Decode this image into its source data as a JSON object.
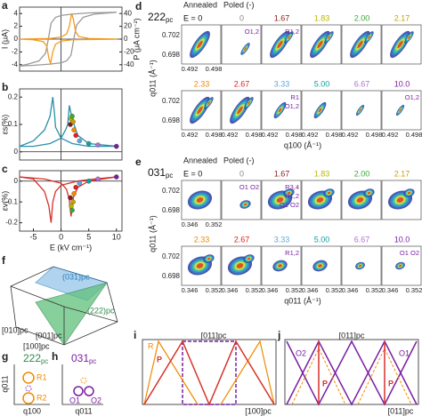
{
  "plots": [
    {
      "label": "a",
      "ylabel": "I (μA)",
      "y2label": "P (μA cm⁻²)",
      "xlim": [
        -7.5,
        11
      ],
      "ylim": [
        -5,
        5
      ],
      "yticks": [
        -4,
        -2,
        0,
        2,
        4
      ],
      "y2lim": [
        -50,
        50
      ],
      "y2ticks": [
        -40,
        -20,
        0,
        20,
        40
      ],
      "series": [
        {
          "color": "#9a9a9a",
          "axis": "y2",
          "x": [
            -7.5,
            -5,
            -2,
            0,
            1,
            1.8,
            2.3,
            2.8,
            4,
            6,
            10
          ],
          "values": [
            -42,
            -41,
            -39,
            -37,
            -34,
            -25,
            0,
            22,
            34,
            39,
            42
          ]
        },
        {
          "color": "#9a9a9a",
          "axis": "y2",
          "x": [
            10,
            5,
            2,
            0,
            -1,
            -1.8,
            -2.3,
            -2.8,
            -4,
            -6,
            -7.5
          ],
          "values": [
            42,
            41,
            39,
            37,
            34,
            25,
            0,
            -22,
            -34,
            -39,
            -42
          ]
        },
        {
          "color": "#f39a1e",
          "x": [
            -7.5,
            -2,
            0,
            1,
            1.5,
            1.9,
            2.2,
            2.6,
            3.2,
            5,
            10
          ],
          "values": [
            0,
            0.1,
            0.3,
            0.8,
            2,
            4,
            3.2,
            1.2,
            0.4,
            0.1,
            0
          ]
        },
        {
          "color": "#f39a1e",
          "x": [
            10,
            2,
            0,
            -1,
            -1.5,
            -1.9,
            -2.2,
            -2.6,
            -3.2,
            -5,
            -7.5
          ],
          "values": [
            0,
            -0.1,
            -0.3,
            -0.8,
            -2,
            -3.8,
            -3,
            -1.1,
            -0.4,
            -0.1,
            0
          ]
        }
      ]
    },
    {
      "label": "b",
      "ylabel": "εs(%)",
      "xlim": [
        -7.5,
        11
      ],
      "ylim": [
        -0.03,
        0.23
      ],
      "yticks": [
        0,
        0.1,
        0.2
      ],
      "series": [
        {
          "color": "#2a8fa8",
          "x": [
            -7.5,
            -5,
            -3,
            -2,
            -1.5,
            -1.2,
            -1,
            0,
            2,
            5,
            10
          ],
          "values": [
            0.02,
            0.04,
            0.08,
            0.13,
            0.2,
            0.14,
            0.09,
            0.05,
            0.03,
            0.02,
            0.02
          ]
        },
        {
          "color": "#2a8fa8",
          "x": [
            -7.5,
            -5,
            -2,
            0,
            0.8,
            1.2,
            1.5,
            2,
            3,
            5,
            10
          ],
          "values": [
            0.02,
            0.02,
            0.03,
            0.05,
            0.08,
            0.1,
            0.17,
            0.12,
            0.06,
            0.03,
            0.02
          ]
        },
        {
          "type": "scatter",
          "x": [
            1.67,
            1.83,
            2.0,
            2.17,
            2.33,
            2.67,
            3.33,
            5,
            6.67,
            10
          ],
          "values": [
            0.1,
            0.12,
            0.13,
            0.11,
            0.08,
            0.06,
            0.04,
            0.03,
            0.025,
            0.02
          ],
          "colors": [
            "#8b1a1a",
            "#b5b800",
            "#3aa835",
            "#c8a000",
            "#f08a00",
            "#e02020",
            "#5aa8e0",
            "#10a0a0",
            "#b070d0",
            "#7a1fa2"
          ]
        }
      ]
    },
    {
      "label": "c",
      "ylabel": "εv(%)",
      "xlabel": "E (kV cm⁻¹)",
      "xlim": [
        -7.5,
        11
      ],
      "xticks": [
        -5,
        0,
        5,
        10
      ],
      "ylim": [
        -0.24,
        0.05
      ],
      "yticks": [
        0,
        -0.1,
        -0.2
      ],
      "series": [
        {
          "color": "#d8312b",
          "x": [
            -7.5,
            -5,
            -3,
            -2.2,
            -1.8,
            -1.5,
            -1,
            0,
            3,
            6,
            10
          ],
          "values": [
            0.02,
            0.01,
            -0.05,
            -0.12,
            -0.2,
            -0.1,
            -0.05,
            -0.02,
            0,
            0.01,
            0.02
          ]
        },
        {
          "color": "#d8312b",
          "x": [
            -7.5,
            -3,
            0,
            1,
            1.5,
            1.8,
            2.2,
            3,
            5,
            10
          ],
          "values": [
            0.02,
            0.01,
            -0.01,
            -0.04,
            -0.09,
            -0.17,
            -0.08,
            -0.03,
            0,
            0.02
          ]
        },
        {
          "type": "scatter",
          "x": [
            1.67,
            1.83,
            2.0,
            2.17,
            2.33,
            2.67,
            3.33,
            5,
            6.67,
            10
          ],
          "values": [
            -0.08,
            -0.12,
            -0.14,
            -0.1,
            -0.06,
            -0.03,
            -0.01,
            0,
            0.01,
            0.02
          ],
          "colors": [
            "#8b1a1a",
            "#b5b800",
            "#3aa835",
            "#c8a000",
            "#f08a00",
            "#e02020",
            "#5aa8e0",
            "#10a0a0",
            "#b070d0",
            "#7a1fa2"
          ]
        }
      ]
    }
  ],
  "maps": [
    {
      "label": "d",
      "title": {
        "main": "222",
        "sub": "pc"
      },
      "xlabel": "q100 (Å⁻¹)",
      "ylabel": "q011 (Å⁻¹)",
      "xticks": [
        "0.492",
        "0.498"
      ],
      "yticks": [
        "0.702",
        "0.698"
      ],
      "head": [
        "Annealed",
        "Poled (-)"
      ],
      "fields": [
        {
          "text": "E = 0",
          "color": "#111"
        },
        {
          "text": "0",
          "color": "#888",
          "notes": [
            "O1,2"
          ]
        },
        {
          "text": "1.67",
          "color": "#8b1a1a",
          "notes": [
            "R1,2"
          ]
        },
        {
          "text": "1.83",
          "color": "#b5b800"
        },
        {
          "text": "2.00",
          "color": "#3aa835"
        },
        {
          "text": "2.17",
          "color": "#c8a000"
        },
        {
          "text": "2.33",
          "color": "#f08a00"
        },
        {
          "text": "2.67",
          "color": "#e02020"
        },
        {
          "text": "3.33",
          "color": "#5aa8e0",
          "notes": [
            "R1",
            "O1,2"
          ]
        },
        {
          "text": "5.00",
          "color": "#10a0a0"
        },
        {
          "text": "6.67",
          "color": "#b070d0"
        },
        {
          "text": "10.0",
          "color": "#7a1fa2",
          "notes": [
            "O1,2"
          ]
        }
      ]
    },
    {
      "label": "e",
      "title": {
        "main": "031",
        "sub": "pc"
      },
      "xlabel": "q011 (Å⁻¹)",
      "ylabel": "q011 (Å⁻¹)",
      "xticks": [
        "0.346",
        "0.352"
      ],
      "yticks": [
        "0.702",
        "0.698"
      ],
      "head": [
        "Annealed",
        "Poled (-)"
      ],
      "fields": [
        {
          "text": "E = 0",
          "color": "#111"
        },
        {
          "text": "0",
          "color": "#888",
          "notes": [
            "O1 O2"
          ]
        },
        {
          "text": "1.67",
          "color": "#8b1a1a",
          "notes": [
            "R3,4",
            "R1,2",
            "O1 O2"
          ]
        },
        {
          "text": "1.83",
          "color": "#b5b800"
        },
        {
          "text": "2.00",
          "color": "#3aa835"
        },
        {
          "text": "2.17",
          "color": "#c8a000"
        },
        {
          "text": "2.33",
          "color": "#f08a00"
        },
        {
          "text": "2.67",
          "color": "#e02020"
        },
        {
          "text": "3.33",
          "color": "#5aa8e0",
          "notes": [
            "R1,2"
          ]
        },
        {
          "text": "5.00",
          "color": "#10a0a0"
        },
        {
          "text": "6.67",
          "color": "#b070d0"
        },
        {
          "text": "10.0",
          "color": "#7a1fa2",
          "notes": [
            "O1 O2"
          ]
        }
      ]
    }
  ],
  "cube": {
    "label": "f",
    "plane1": "(031)pc",
    "plane2": "(222)pc",
    "dir1": "[010]pc",
    "dir2": "[001]pc",
    "dir3": "[100]pc"
  },
  "sketch_g": {
    "label": "g",
    "title": {
      "main": "222",
      "sub": "pc"
    },
    "ylabel": "q011",
    "xlabel": "q100",
    "r1": "R1",
    "r2": "R2"
  },
  "sketch_h": {
    "label": "h",
    "title": {
      "main": "031",
      "sub": "pc"
    },
    "xlabel": "q011",
    "o1": "O1",
    "o2": "O2"
  },
  "sketch_i": {
    "label": "i",
    "top": "[011]pc",
    "bottom": "[100]pc",
    "r": "R",
    "p": "P"
  },
  "sketch_j": {
    "label": "j",
    "top": "[011]pc",
    "bottom": "[011]pc",
    "o2": "O2",
    "o1": "O1",
    "p1": "P",
    "p2": "P"
  }
}
